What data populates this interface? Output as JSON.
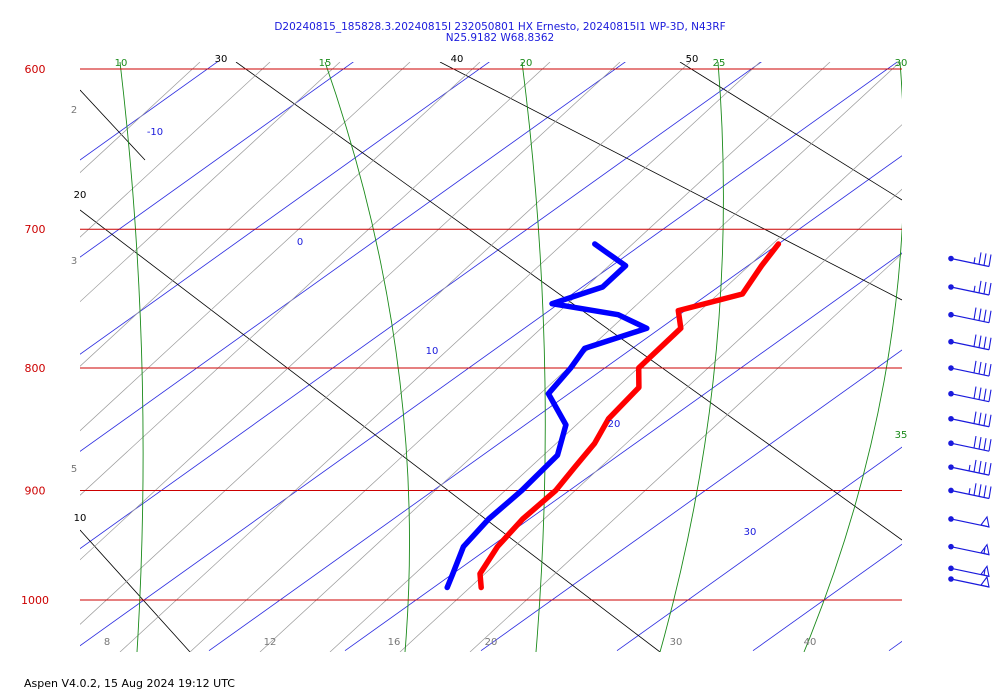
{
  "header": {
    "title_line1": "D20240815_185828.3.20240815I 232050801 HX Ernesto, 20240815I1 WP-3D, N43RF",
    "title_line2": "N25.9182 W68.8362"
  },
  "footer": {
    "text": "Aspen V4.0.2, 15 Aug 2024  19:12 UTC"
  },
  "chart_data": {
    "type": "line",
    "title": "D20240815_185828.3.20240815I 232050801 HX Ernesto, 20240815I1 WP-3D, N43RF",
    "subtitle": "N25.9182 W68.8362",
    "chart_kind": "skew-T log-P",
    "pressure_range": [
      1050,
      600
    ],
    "pressure_ticks": [
      600,
      700,
      800,
      900,
      1000
    ],
    "bottom_tick_labels": [
      8,
      12,
      16,
      20,
      30,
      40
    ],
    "top_black_labels": [
      30,
      40,
      50
    ],
    "top_green_labels": [
      10,
      15,
      20,
      25,
      30
    ],
    "side_green_labels": [
      35
    ],
    "blue_line_labels": [
      -10,
      0,
      10,
      20,
      30
    ],
    "left_gray_labels": [
      2,
      3,
      5
    ],
    "left_black_labels": [
      20,
      10
    ],
    "series": [
      {
        "name": "temperature",
        "color": "#ff0000",
        "points": [
          {
            "p": 710,
            "t": 10.0
          },
          {
            "p": 725,
            "t": 11.0
          },
          {
            "p": 745,
            "t": 12.5
          },
          {
            "p": 757,
            "t": 9.5
          },
          {
            "p": 770,
            "t": 11.5
          },
          {
            "p": 800,
            "t": 12.5
          },
          {
            "p": 815,
            "t": 14.5
          },
          {
            "p": 840,
            "t": 15.5
          },
          {
            "p": 860,
            "t": 17.0
          },
          {
            "p": 880,
            "t": 18.0
          },
          {
            "p": 900,
            "t": 19.0
          },
          {
            "p": 925,
            "t": 19.5
          },
          {
            "p": 950,
            "t": 20.5
          },
          {
            "p": 975,
            "t": 22.0
          },
          {
            "p": 988,
            "t": 23.5
          }
        ]
      },
      {
        "name": "dewpoint",
        "color": "#0000ff",
        "points": [
          {
            "p": 710,
            "t": -3.5
          },
          {
            "p": 715,
            "t": -2.0
          },
          {
            "p": 725,
            "t": 1.0
          },
          {
            "p": 740,
            "t": 1.5
          },
          {
            "p": 752,
            "t": -0.5
          },
          {
            "p": 760,
            "t": 5.5
          },
          {
            "p": 770,
            "t": 9.0
          },
          {
            "p": 785,
            "t": 6.5
          },
          {
            "p": 800,
            "t": 7.5
          },
          {
            "p": 820,
            "t": 8.5
          },
          {
            "p": 845,
            "t": 13.0
          },
          {
            "p": 870,
            "t": 15.5
          },
          {
            "p": 900,
            "t": 16.5
          },
          {
            "p": 925,
            "t": 17.0
          },
          {
            "p": 950,
            "t": 18.0
          },
          {
            "p": 975,
            "t": 20.0
          },
          {
            "p": 988,
            "t": 21.0
          }
        ]
      }
    ],
    "wind_barbs": [
      {
        "p": 720,
        "speed_kt": 35
      },
      {
        "p": 740,
        "speed_kt": 35
      },
      {
        "p": 760,
        "speed_kt": 40
      },
      {
        "p": 780,
        "speed_kt": 40
      },
      {
        "p": 800,
        "speed_kt": 40
      },
      {
        "p": 820,
        "speed_kt": 40
      },
      {
        "p": 840,
        "speed_kt": 40
      },
      {
        "p": 860,
        "speed_kt": 40
      },
      {
        "p": 880,
        "speed_kt": 45
      },
      {
        "p": 900,
        "speed_kt": 45
      },
      {
        "p": 925,
        "speed_kt": 50
      },
      {
        "p": 950,
        "speed_kt": 55
      },
      {
        "p": 970,
        "speed_kt": 55
      },
      {
        "p": 980,
        "speed_kt": 50
      }
    ],
    "colors": {
      "isobar": "#cc0000",
      "temperature": "#ff0000",
      "dewpoint": "#0000ff",
      "dry_adiabat": "#1a8a1a",
      "moist_adiabat": "#999999",
      "barb": "#1a1adc"
    }
  }
}
